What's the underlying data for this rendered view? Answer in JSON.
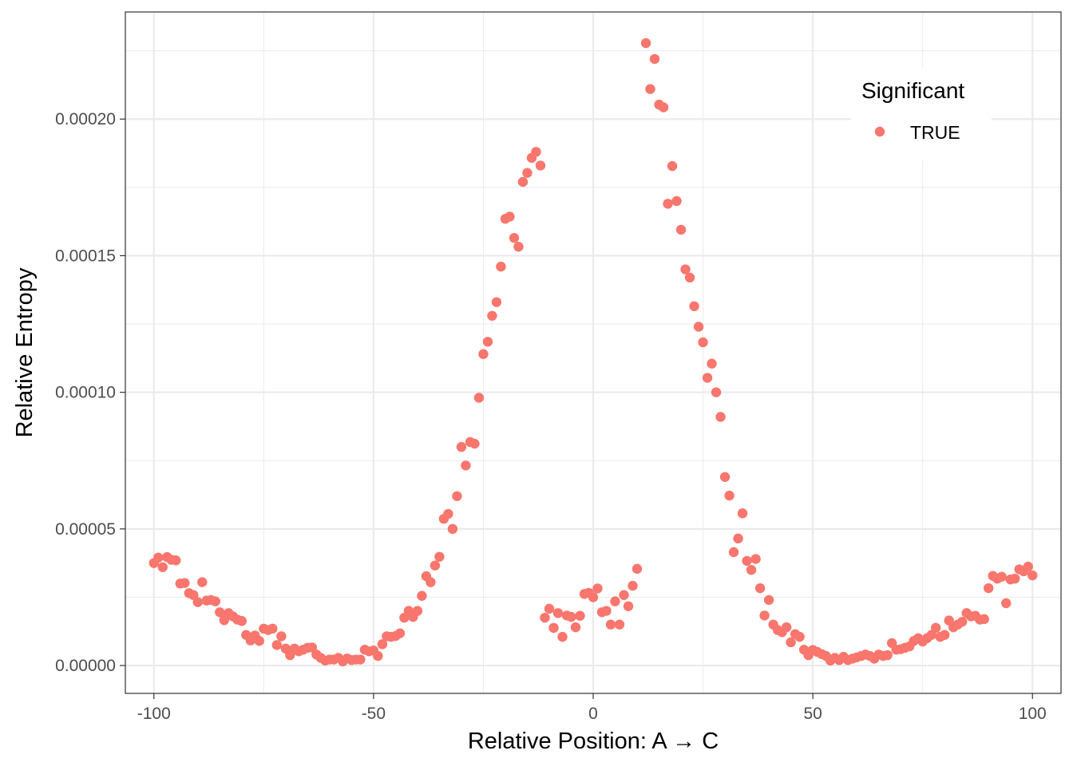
{
  "chart_data": {
    "type": "scatter",
    "xlabel": "Relative Position: A → C",
    "ylabel": "Relative Entropy",
    "xlim": [
      -106.5,
      106.5
    ],
    "ylim": [
      -1.02e-05,
      0.0002392
    ],
    "x_ticks": [
      -100,
      -50,
      0,
      50,
      100
    ],
    "x_tick_labels": [
      "-100",
      "-50",
      "0",
      "50",
      "100"
    ],
    "y_ticks": [
      0,
      5e-05,
      0.0001,
      0.00015,
      0.0002
    ],
    "y_tick_labels": [
      "0.00000",
      "0.00005",
      "0.00010",
      "0.00015",
      "0.00020"
    ],
    "y_minor_ticks": [
      2.5e-05,
      7.5e-05,
      0.000125,
      0.000175,
      0.000225
    ],
    "x_minor_ticks": [
      -75,
      -25,
      25,
      75
    ],
    "grid": true,
    "legend": {
      "title": "Significant",
      "position": "top-right",
      "entries": [
        {
          "label": "TRUE",
          "color": "#F8766D"
        }
      ]
    },
    "series": [
      {
        "name": "TRUE",
        "color": "#F8766D",
        "points": [
          [
            -100,
            3.75e-05
          ],
          [
            -99,
            3.95e-05
          ],
          [
            -98,
            3.6e-05
          ],
          [
            -97,
            3.97e-05
          ],
          [
            -96,
            3.87e-05
          ],
          [
            -95,
            3.85e-05
          ],
          [
            -94,
            3e-05
          ],
          [
            -93,
            3.02e-05
          ],
          [
            -92,
            2.65e-05
          ],
          [
            -91,
            2.58e-05
          ],
          [
            -90,
            2.32e-05
          ],
          [
            -89,
            3.05e-05
          ],
          [
            -88,
            2.38e-05
          ],
          [
            -87,
            2.4e-05
          ],
          [
            -86,
            2.35e-05
          ],
          [
            -85,
            1.95e-05
          ],
          [
            -84,
            1.66e-05
          ],
          [
            -83,
            1.92e-05
          ],
          [
            -82,
            1.8e-05
          ],
          [
            -81,
            1.68e-05
          ],
          [
            -80,
            1.63e-05
          ],
          [
            -79,
            1.12e-05
          ],
          [
            -78,
            9.2e-06
          ],
          [
            -77,
            1.1e-05
          ],
          [
            -76,
            9e-06
          ],
          [
            -75,
            1.35e-05
          ],
          [
            -74,
            1.3e-05
          ],
          [
            -73,
            1.35e-05
          ],
          [
            -72,
            7.5e-06
          ],
          [
            -71,
            1.07e-05
          ],
          [
            -70,
            6.2e-06
          ],
          [
            -69,
            3.8e-06
          ],
          [
            -68,
            6.2e-06
          ],
          [
            -67,
            5.2e-06
          ],
          [
            -66,
            5.8e-06
          ],
          [
            -65,
            6.5e-06
          ],
          [
            -64,
            6.6e-06
          ],
          [
            -63,
            4e-06
          ],
          [
            -62,
            2.8e-06
          ],
          [
            -61,
            1.8e-06
          ],
          [
            -60,
            2.2e-06
          ],
          [
            -59,
            2.2e-06
          ],
          [
            -58,
            2.8e-06
          ],
          [
            -57,
            1.5e-06
          ],
          [
            -56,
            2.6e-06
          ],
          [
            -55,
            2e-06
          ],
          [
            -54,
            2.2e-06
          ],
          [
            -53,
            2.2e-06
          ],
          [
            -52,
            5.8e-06
          ],
          [
            -51,
            5.2e-06
          ],
          [
            -50,
            5.5e-06
          ],
          [
            -49,
            3.5e-06
          ],
          [
            -48,
            7.8e-06
          ],
          [
            -47,
            1.07e-05
          ],
          [
            -46,
            1.05e-05
          ],
          [
            -45,
            1.08e-05
          ],
          [
            -44,
            1.18e-05
          ],
          [
            -43,
            1.75e-05
          ],
          [
            -42,
            2e-05
          ],
          [
            -41,
            1.78e-05
          ],
          [
            -40,
            2e-05
          ],
          [
            -39,
            2.55e-05
          ],
          [
            -38,
            3.27e-05
          ],
          [
            -37,
            3.05e-05
          ],
          [
            -36,
            3.66e-05
          ],
          [
            -35,
            3.98e-05
          ],
          [
            -34,
            5.37e-05
          ],
          [
            -33,
            5.55e-05
          ],
          [
            -32,
            5e-05
          ],
          [
            -31,
            6.2e-05
          ],
          [
            -30,
            8e-05
          ],
          [
            -29,
            7.32e-05
          ],
          [
            -28,
            8.18e-05
          ],
          [
            -27,
            8.12e-05
          ],
          [
            -26,
            9.8e-05
          ],
          [
            -25,
            0.000114
          ],
          [
            -24,
            0.0001185
          ],
          [
            -23,
            0.000128
          ],
          [
            -22,
            0.000133
          ],
          [
            -21,
            0.000146
          ],
          [
            -20,
            0.0001635
          ],
          [
            -19,
            0.0001643
          ],
          [
            -18,
            0.0001565
          ],
          [
            -17,
            0.0001533
          ],
          [
            -16,
            0.000177
          ],
          [
            -15,
            0.0001803
          ],
          [
            -14,
            0.0001858
          ],
          [
            -13,
            0.000188
          ],
          [
            -12,
            0.000183
          ],
          [
            -11,
            1.75e-05
          ],
          [
            -10,
            2.08e-05
          ],
          [
            -9,
            1.38e-05
          ],
          [
            -8,
            1.92e-05
          ],
          [
            -7,
            1.05e-05
          ],
          [
            -6,
            1.83e-05
          ],
          [
            -5,
            1.78e-05
          ],
          [
            -4,
            1.4e-05
          ],
          [
            -3,
            1.82e-05
          ],
          [
            -2,
            2.62e-05
          ],
          [
            -1,
            2.66e-05
          ],
          [
            0,
            2.5e-05
          ],
          [
            1,
            2.82e-05
          ],
          [
            2,
            1.95e-05
          ],
          [
            3,
            2e-05
          ],
          [
            4,
            1.5e-05
          ],
          [
            5,
            2.35e-05
          ],
          [
            6,
            1.5e-05
          ],
          [
            7,
            2.58e-05
          ],
          [
            8,
            2.17e-05
          ],
          [
            9,
            2.92e-05
          ],
          [
            10,
            3.54e-05
          ],
          [
            12,
            0.0002278
          ],
          [
            13,
            0.000211
          ],
          [
            14,
            0.000222
          ],
          [
            15,
            0.0002053
          ],
          [
            16,
            0.0002043
          ],
          [
            17,
            0.000169
          ],
          [
            18,
            0.0001828
          ],
          [
            19,
            0.00017
          ],
          [
            20,
            0.0001595
          ],
          [
            21,
            0.000145
          ],
          [
            22,
            0.000142
          ],
          [
            23,
            0.0001315
          ],
          [
            24,
            0.000124
          ],
          [
            25,
            0.0001183
          ],
          [
            26,
            0.0001053
          ],
          [
            27,
            0.0001105
          ],
          [
            28,
            0.0001
          ],
          [
            29,
            9.1e-05
          ],
          [
            30,
            6.9e-05
          ],
          [
            31,
            6.22e-05
          ],
          [
            32,
            4.15e-05
          ],
          [
            33,
            4.65e-05
          ],
          [
            34,
            5.57e-05
          ],
          [
            35,
            3.83e-05
          ],
          [
            36,
            3.5e-05
          ],
          [
            37,
            3.9e-05
          ],
          [
            38,
            2.83e-05
          ],
          [
            39,
            1.83e-05
          ],
          [
            40,
            2.4e-05
          ],
          [
            41,
            1.5e-05
          ],
          [
            42,
            1.3e-05
          ],
          [
            43,
            1.22e-05
          ],
          [
            44,
            1.4e-05
          ],
          [
            45,
            8.5e-06
          ],
          [
            46,
            1.15e-05
          ],
          [
            47,
            1.05e-05
          ],
          [
            48,
            5.8e-06
          ],
          [
            49,
            3.8e-06
          ],
          [
            50,
            5.7e-06
          ],
          [
            51,
            5e-06
          ],
          [
            52,
            4.2e-06
          ],
          [
            53,
            3.5e-06
          ],
          [
            54,
            1.8e-06
          ],
          [
            55,
            2.8e-06
          ],
          [
            56,
            2e-06
          ],
          [
            57,
            3.2e-06
          ],
          [
            58,
            2e-06
          ],
          [
            59,
            2.5e-06
          ],
          [
            60,
            3e-06
          ],
          [
            61,
            3.5e-06
          ],
          [
            62,
            4e-06
          ],
          [
            63,
            3.5e-06
          ],
          [
            64,
            2.5e-06
          ],
          [
            65,
            4e-06
          ],
          [
            66,
            3.5e-06
          ],
          [
            67,
            3.8e-06
          ],
          [
            68,
            8.2e-06
          ],
          [
            69,
            5.8e-06
          ],
          [
            70,
            6e-06
          ],
          [
            71,
            6.5e-06
          ],
          [
            72,
            7e-06
          ],
          [
            73,
            9e-06
          ],
          [
            74,
            1e-05
          ],
          [
            75,
            8.8e-06
          ],
          [
            76,
            1e-05
          ],
          [
            77,
            1.12e-05
          ],
          [
            78,
            1.38e-05
          ],
          [
            79,
            1.05e-05
          ],
          [
            80,
            1.12e-05
          ],
          [
            81,
            1.65e-05
          ],
          [
            82,
            1.4e-05
          ],
          [
            83,
            1.5e-05
          ],
          [
            84,
            1.6e-05
          ],
          [
            85,
            1.92e-05
          ],
          [
            86,
            1.8e-05
          ],
          [
            87,
            1.82e-05
          ],
          [
            88,
            1.68e-05
          ],
          [
            89,
            1.7e-05
          ],
          [
            90,
            2.83e-05
          ],
          [
            91,
            3.28e-05
          ],
          [
            92,
            3.18e-05
          ],
          [
            93,
            3.25e-05
          ],
          [
            94,
            2.28e-05
          ],
          [
            95,
            3.15e-05
          ],
          [
            96,
            3.18e-05
          ],
          [
            97,
            3.52e-05
          ],
          [
            98,
            3.45e-05
          ],
          [
            99,
            3.62e-05
          ],
          [
            100,
            3.3e-05
          ]
        ]
      }
    ]
  }
}
